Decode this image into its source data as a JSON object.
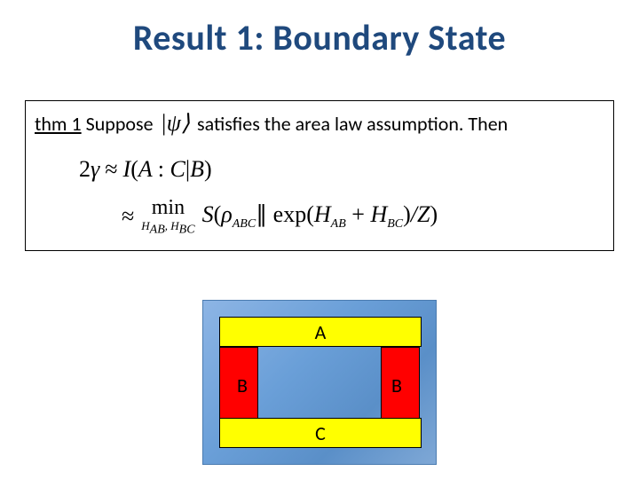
{
  "title": {
    "text": "Result 1: Boundary State",
    "color": "#1f497d",
    "fontsize": 40
  },
  "thm": {
    "prefix_underlined": "thm 1",
    "prefix_rest": " Suppose",
    "psi": "|ψ⟩",
    "suffix": "satisfies the area law assumption. Then"
  },
  "eq1": {
    "lhs_coeff": "2",
    "lhs_var": "γ",
    "approx": "≈",
    "rhs_I": "I",
    "rhs_open": "(",
    "rhs_A": "A",
    "rhs_colon": ":",
    "rhs_C": "C",
    "rhs_bar": "|",
    "rhs_B": "B",
    "rhs_close": ")"
  },
  "eq2": {
    "approx": "≈",
    "min_top": "min",
    "min_bot": "H_{AB}, H_{BC}",
    "S": "S",
    "open": "(",
    "rho": "ρ",
    "rho_sub": "ABC",
    "dbar": "∥",
    "exp": "exp",
    "open2": "(",
    "H1": "H",
    "H1_sub": "AB",
    "plus": "+",
    "H2": "H",
    "H2_sub": "BC",
    "close2": ")",
    "slash": "/",
    "Z": "Z",
    "close": ")"
  },
  "diagram": {
    "background_gradient": [
      "#8db5e5",
      "#6a9fd8",
      "#5a8fc8",
      "#7fa8d6"
    ],
    "regions": {
      "A": {
        "label": "A",
        "color": "#ffff00"
      },
      "B_left": {
        "label": "B",
        "color": "#ff0000"
      },
      "B_right": {
        "label": "B",
        "color": "#ff0000"
      },
      "C": {
        "label": "C",
        "color": "#ffff00"
      }
    }
  }
}
